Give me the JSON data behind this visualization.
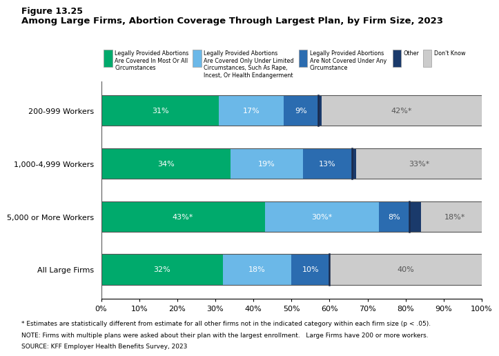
{
  "title_line1": "Figure 13.25",
  "title_line2": "Among Large Firms, Abortion Coverage Through Largest Plan, by Firm Size, 2023",
  "categories": [
    "200-999 Workers",
    "1,000-4,999 Workers",
    "5,000 or More Workers",
    "All Large Firms"
  ],
  "series": [
    {
      "label": "Legally Provided Abortions\nAre Covered In Most Or All\nCircumstances",
      "color": "#00AA6C",
      "values": [
        31,
        34,
        43,
        32
      ],
      "text": [
        "31%",
        "34%",
        "43%*",
        "32%"
      ]
    },
    {
      "label": "Legally Provided Abortions\nAre Covered Only Under Limited\nCircumstances, Such As Rape,\nIncest, Or Health Endangerment",
      "color": "#6BB8E8",
      "values": [
        17,
        19,
        30,
        18
      ],
      "text": [
        "17%",
        "19%",
        "30%*",
        "18%"
      ]
    },
    {
      "label": "Legally Provided Abortions\nAre Not Covered Under Any\nCircumstance",
      "color": "#2B6CB0",
      "values": [
        9,
        13,
        8,
        10
      ],
      "text": [
        "9%",
        "13%",
        "8%",
        "10%"
      ]
    },
    {
      "label": "Other",
      "color": "#1A3A6B",
      "values": [
        1,
        1,
        3,
        0
      ],
      "text": [
        "",
        "",
        "",
        ""
      ]
    },
    {
      "label": "Don't Know",
      "color": "#CCCCCC",
      "values": [
        42,
        33,
        18,
        40
      ],
      "text": [
        "42%*",
        "33%*",
        "18%*",
        "40%"
      ]
    }
  ],
  "xlim": [
    0,
    100
  ],
  "xticks": [
    0,
    10,
    20,
    30,
    40,
    50,
    60,
    70,
    80,
    90,
    100
  ],
  "xticklabels": [
    "0%",
    "10%",
    "20%",
    "30%",
    "40%",
    "50%",
    "60%",
    "70%",
    "80%",
    "90%",
    "100%"
  ],
  "footnote1": "* Estimates are statistically different from estimate for all other firms not in the indicated category within each firm size (p < .05).",
  "footnote2": "NOTE: Firms with multiple plans were asked about their plan with the largest enrollment.   Large Firms have 200 or more workers.",
  "footnote3": "SOURCE: KFF Employer Health Benefits Survey, 2023",
  "text_color_white": "#FFFFFF",
  "text_color_dark": "#555555",
  "background_color": "#FFFFFF"
}
